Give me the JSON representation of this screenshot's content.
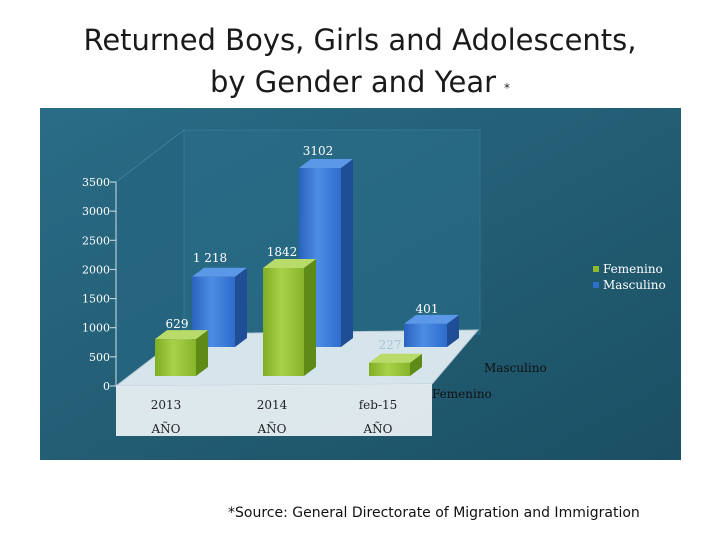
{
  "title": {
    "line1": "Returned Boys, Girls and Adolescents,",
    "line2": "by Gender and Year",
    "marker": "*"
  },
  "source": "*Source: General Directorate of Migration and Immigration",
  "colors": {
    "plot_bg": "#215A70",
    "femenino": "#8DB92E",
    "masculino": "#2F70CC",
    "floor": "#D6E4EC"
  },
  "chart_data": {
    "type": "bar",
    "subtype": "3d-clustered",
    "ylim": [
      0,
      3500
    ],
    "yticks": [
      "0",
      "500",
      "1000",
      "1500",
      "2000",
      "2500",
      "3000",
      "3500"
    ],
    "ytick_values": [
      0,
      500,
      1000,
      1500,
      2000,
      2500,
      3000,
      3500
    ],
    "categories": [
      "2013",
      "2014",
      "feb-15"
    ],
    "category_sublabels": [
      "AÑO",
      "AÑO",
      "AÑO"
    ],
    "series": [
      {
        "name": "Femenino",
        "values": [
          629,
          1842,
          227
        ],
        "labels": [
          "629",
          "1842",
          "227"
        ]
      },
      {
        "name": "Masculino",
        "values": [
          1218,
          3102,
          401
        ],
        "labels": [
          "1 218",
          "3102",
          "401"
        ]
      }
    ],
    "depth_axis_labels": [
      "Masculino",
      "Femenino"
    ],
    "legend": [
      "Femenino",
      "Masculino"
    ],
    "legend_position": "right"
  }
}
